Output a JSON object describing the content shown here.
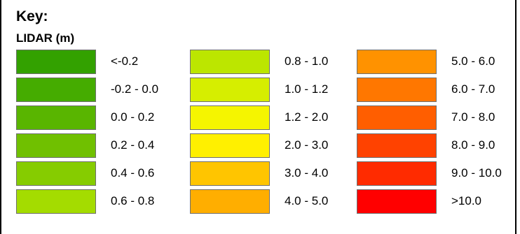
{
  "legend": {
    "title": "Key:",
    "subtitle": "LIDAR (m)",
    "columns": [
      [
        {
          "label": "<-0.2",
          "color": "#33a100"
        },
        {
          "label": "-0.2 - 0.0",
          "color": "#45ac00"
        },
        {
          "label": "0.0 - 0.2",
          "color": "#59b500"
        },
        {
          "label": "0.2 - 0.4",
          "color": "#70c000"
        },
        {
          "label": "0.4 - 0.6",
          "color": "#86cc00"
        },
        {
          "label": "0.6 - 0.8",
          "color": "#a4dc00"
        }
      ],
      [
        {
          "label": "0.8 - 1.0",
          "color": "#bce600"
        },
        {
          "label": "1.0 - 1.2",
          "color": "#d6ee00"
        },
        {
          "label": "1.2 - 2.0",
          "color": "#f5f500"
        },
        {
          "label": "2.0 - 3.0",
          "color": "#fff000"
        },
        {
          "label": "3.0 - 4.0",
          "color": "#ffc500"
        },
        {
          "label": "4.0 - 5.0",
          "color": "#ffae00"
        }
      ],
      [
        {
          "label": "5.0 - 6.0",
          "color": "#ff9200"
        },
        {
          "label": "6.0 - 7.0",
          "color": "#ff7700"
        },
        {
          "label": "7.0 - 8.0",
          "color": "#ff5e00"
        },
        {
          "label": "8.0 - 9.0",
          "color": "#ff4200"
        },
        {
          "label": "9.0 - 10.0",
          "color": "#ff2b00"
        },
        {
          "label": ">10.0",
          "color": "#ff0000"
        }
      ]
    ]
  }
}
